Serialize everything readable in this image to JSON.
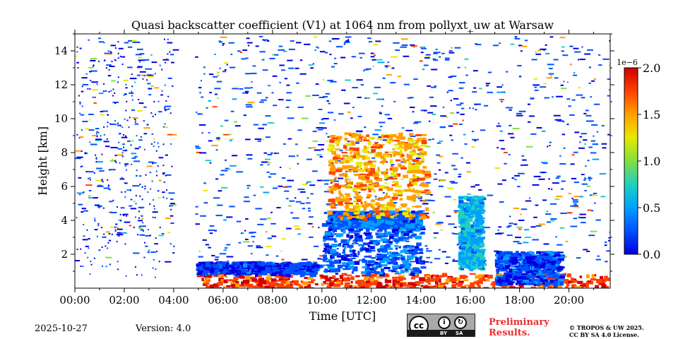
{
  "chart_data": {
    "type": "heatmap",
    "title": "Quasi backscatter coefficient (V1) at 1064 nm from pollyxt_uw at Warsaw",
    "xlabel": "Time [UTC]",
    "ylabel": "Height [km]",
    "xlim_hours": [
      0,
      21.67
    ],
    "ylim_km": [
      0,
      15
    ],
    "xticks": [
      {
        "value": 0,
        "label": "00:00"
      },
      {
        "value": 2,
        "label": "02:00"
      },
      {
        "value": 4,
        "label": "04:00"
      },
      {
        "value": 6,
        "label": "06:00"
      },
      {
        "value": 8,
        "label": "08:00"
      },
      {
        "value": 10,
        "label": "10:00"
      },
      {
        "value": 12,
        "label": "12:00"
      },
      {
        "value": 14,
        "label": "14:00"
      },
      {
        "value": 16,
        "label": "16:00"
      },
      {
        "value": 18,
        "label": "18:00"
      },
      {
        "value": 20,
        "label": "20:00"
      }
    ],
    "yticks": [
      {
        "value": 2,
        "label": "2"
      },
      {
        "value": 4,
        "label": "4"
      },
      {
        "value": 6,
        "label": "6"
      },
      {
        "value": 8,
        "label": "8"
      },
      {
        "value": 10,
        "label": "10"
      },
      {
        "value": 12,
        "label": "12"
      },
      {
        "value": 14,
        "label": "14"
      }
    ],
    "colorbar": {
      "min": 0.0,
      "max": 2.0,
      "scale_label": "1e−6",
      "ticks": [
        {
          "value": 0.0,
          "label": "0.0"
        },
        {
          "value": 0.5,
          "label": "0.5"
        },
        {
          "value": 1.0,
          "label": "1.0"
        },
        {
          "value": 1.5,
          "label": "1.5"
        },
        {
          "value": 2.0,
          "label": "2.0"
        }
      ],
      "colors": [
        "#0000e0",
        "#0050ff",
        "#00a0ff",
        "#20d0c0",
        "#80e040",
        "#e8e800",
        "#ffa000",
        "#ff4000",
        "#d00000"
      ]
    },
    "regions": [
      {
        "name": "low-cloud-band",
        "t": [
          4.9,
          21.6
        ],
        "h": [
          0.0,
          0.9
        ],
        "value": 1.8
      },
      {
        "name": "boundary-layer",
        "t": [
          4.9,
          9.8
        ],
        "h": [
          0.9,
          1.6
        ],
        "value": 0.15
      },
      {
        "name": "aerosol-layer",
        "t": [
          10.0,
          14.0
        ],
        "h": [
          0.9,
          4.6
        ],
        "value": 0.25
      },
      {
        "name": "aerosol-layer-top",
        "t": [
          10.2,
          13.9
        ],
        "h": [
          3.6,
          4.6
        ],
        "value": 0.35
      },
      {
        "name": "cloud-column",
        "t": [
          15.5,
          16.4
        ],
        "h": [
          1.2,
          5.5
        ],
        "value": 0.6
      },
      {
        "name": "cirrus-fall-streaks",
        "t": [
          10.2,
          14.2
        ],
        "h": [
          4.2,
          9.2
        ],
        "value": 1.5
      },
      {
        "name": "evening-layer",
        "t": [
          17.0,
          19.6
        ],
        "h": [
          0.3,
          2.2
        ],
        "value": 0.2
      },
      {
        "name": "early-noise",
        "t": [
          0.0,
          3.9
        ],
        "h": [
          0.6,
          14.8
        ],
        "value": 0.1
      }
    ]
  },
  "footer": {
    "date": "2025-10-27",
    "version": "Version: 4.0",
    "license_badge": {
      "by": "BY",
      "sa": "SA"
    },
    "preliminary_line1": "Preliminary",
    "preliminary_line2": "Results.",
    "copyright_line1": "© TROPOS & UW 2025.",
    "copyright_line2": "CC BY SA 4.0 License."
  }
}
